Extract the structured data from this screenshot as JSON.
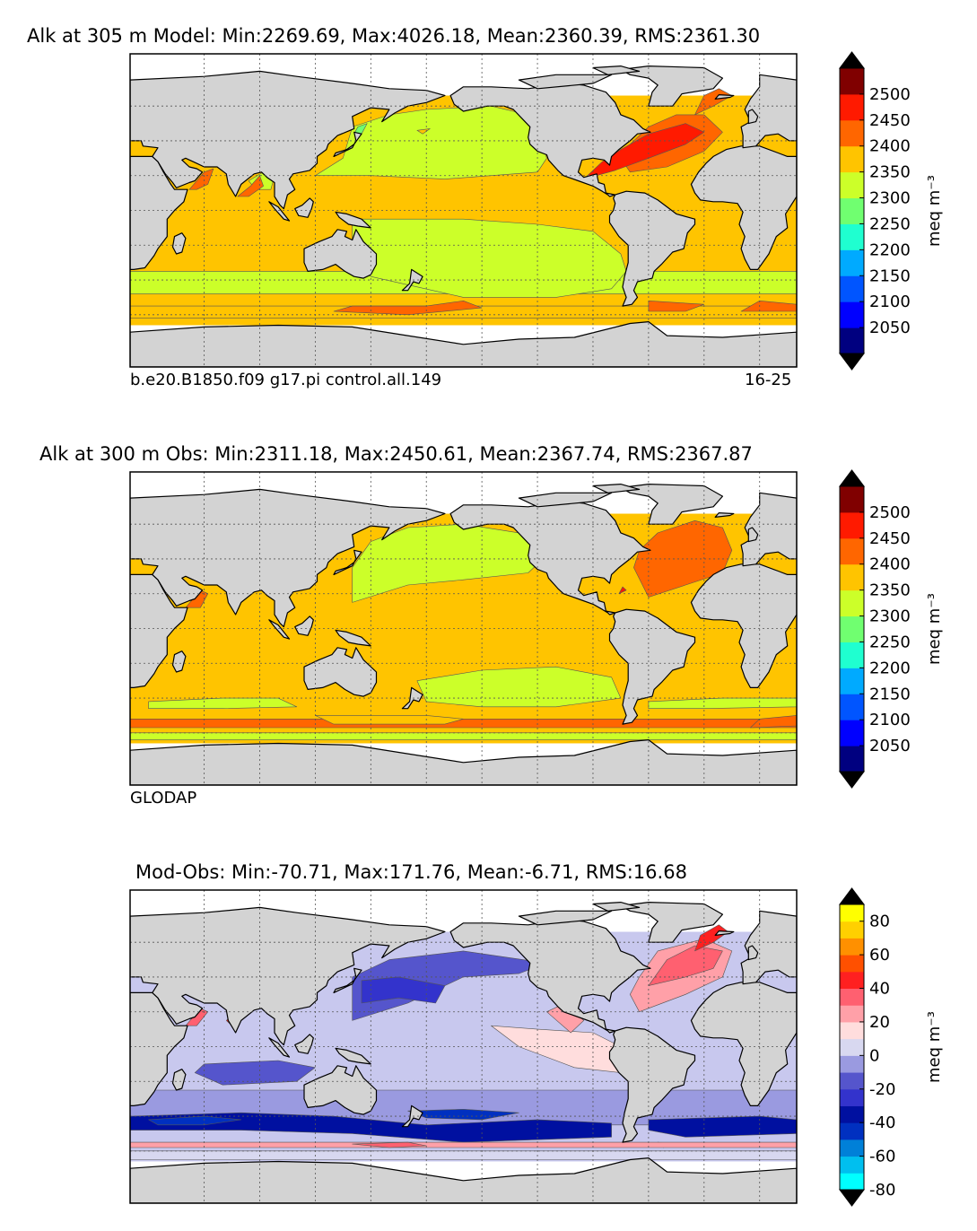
{
  "figure": {
    "panels": [
      {
        "title": "Alk at 305 m Model: Min:2269.69, Max:4026.18, Mean:2360.39, RMS:2361.30",
        "left_note": "b.e20.B1850.f09 g17.pi control.all.149",
        "right_note": "16-25"
      },
      {
        "title": "Alk at 300 m Obs: Min:2311.18, Max:2450.61, Mean:2367.74, RMS:2367.87",
        "left_note": "GLODAP",
        "right_note": ""
      },
      {
        "title": "Mod-Obs: Min:-70.71, Max:171.76, Mean:-6.71, RMS:16.68",
        "left_note": "",
        "right_note": ""
      }
    ]
  },
  "chart_data": [
    {
      "type": "heatmap",
      "title": "Alk at 305 m Model: Min:2269.69, Max:4026.18, Mean:2360.39, RMS:2361.30",
      "stats": {
        "min": 2269.69,
        "max": 4026.18,
        "mean": 2360.39,
        "rms": 2361.3
      },
      "colorbar": {
        "label": "meq m⁻³",
        "levels": [
          2025,
          2050,
          2100,
          2150,
          2200,
          2250,
          2300,
          2350,
          2400,
          2450,
          2500,
          2525
        ],
        "ticks": [
          "2050",
          "2100",
          "2150",
          "2200",
          "2250",
          "2300",
          "2350",
          "2400",
          "2450",
          "2500"
        ],
        "colors": [
          "#000080",
          "#0000ff",
          "#0055ff",
          "#00aaff",
          "#1fffd0",
          "#70ff70",
          "#ccff29",
          "#ffc400",
          "#ff6600",
          "#ff1a00",
          "#800000"
        ],
        "extend_low": "#000000",
        "extend_high": "#000000"
      },
      "map": {
        "grid_lines": true,
        "land_color": "#d3d3d3",
        "ocean_base": "#ffc400"
      }
    },
    {
      "type": "heatmap",
      "title": "Alk at 300 m Obs: Min:2311.18, Max:2450.61, Mean:2367.74, RMS:2367.87",
      "stats": {
        "min": 2311.18,
        "max": 2450.61,
        "mean": 2367.74,
        "rms": 2367.87
      },
      "colorbar": {
        "label": "meq m⁻³",
        "levels": [
          2025,
          2050,
          2100,
          2150,
          2200,
          2250,
          2300,
          2350,
          2400,
          2450,
          2500,
          2525
        ],
        "ticks": [
          "2050",
          "2100",
          "2150",
          "2200",
          "2250",
          "2300",
          "2350",
          "2400",
          "2450",
          "2500"
        ],
        "colors": [
          "#000080",
          "#0000ff",
          "#0055ff",
          "#00aaff",
          "#1fffd0",
          "#70ff70",
          "#ccff29",
          "#ffc400",
          "#ff6600",
          "#ff1a00",
          "#800000"
        ],
        "extend_low": "#000000",
        "extend_high": "#000000"
      },
      "map": {
        "grid_lines": true,
        "land_color": "#d3d3d3",
        "ocean_base": "#ffc400"
      }
    },
    {
      "type": "heatmap",
      "title": "Mod-Obs: Min:-70.71, Max:171.76, Mean:-6.71, RMS:16.68",
      "stats": {
        "min": -70.71,
        "max": 171.76,
        "mean": -6.71,
        "rms": 16.68
      },
      "colorbar": {
        "label": "meq m⁻³",
        "levels": [
          -80,
          -70,
          -60,
          -50,
          -40,
          -30,
          -20,
          -10,
          0,
          10,
          20,
          30,
          40,
          50,
          60,
          70,
          80
        ],
        "ticks": [
          "-80",
          "-60",
          "-40",
          "-20",
          "0",
          "20",
          "40",
          "60",
          "80"
        ],
        "colors": [
          "#00ffff",
          "#00bfef",
          "#0080d8",
          "#0030c0",
          "#0010a0",
          "#3333cc",
          "#5555cc",
          "#9a9ae0",
          "#d8d8f0",
          "#ffdddd",
          "#ffa0a8",
          "#ff6070",
          "#ff2020",
          "#ff5000",
          "#ff9000",
          "#ffd000",
          "#ffff00"
        ],
        "extend_low": "#000000",
        "extend_high": "#000000"
      },
      "map": {
        "grid_lines": true,
        "land_color": "#d3d3d3",
        "ocean_base": "#c8c8ee"
      }
    }
  ]
}
